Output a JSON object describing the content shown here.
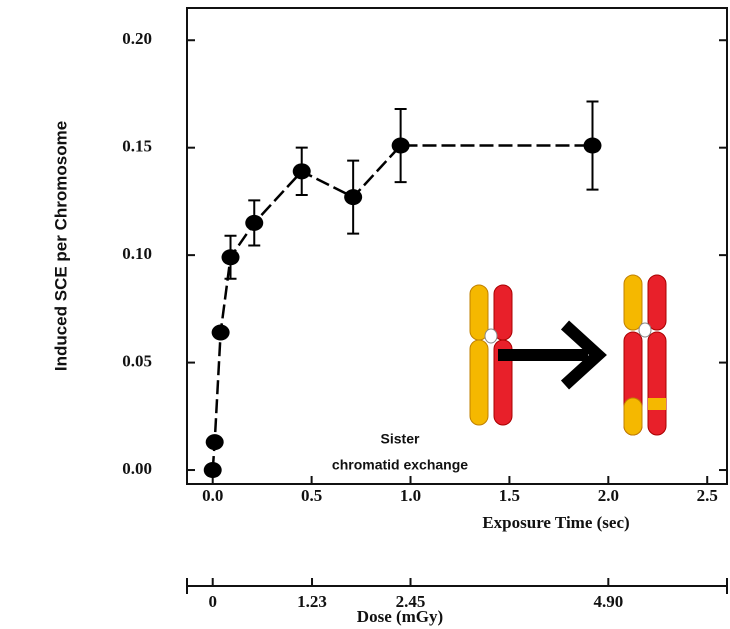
{
  "chart_data": {
    "type": "line",
    "ylabel": "Induced SCE per Chromosome",
    "xlabel": "Exposure Time (sec)",
    "x2label": "Dose (mGy)",
    "annotation": [
      "Sister",
      "chromatid exchange"
    ],
    "x": [
      0,
      0.01,
      0.04,
      0.09,
      0.21,
      0.45,
      0.71,
      0.95,
      1.92
    ],
    "series": [
      {
        "color": "#000000",
        "values": [
          0.0,
          0.013,
          0.064,
          0.099,
          0.115,
          0.139,
          0.127,
          0.151,
          0.151
        ],
        "errors": [
          null,
          null,
          null,
          0.01,
          0.0105,
          0.011,
          0.017,
          0.017,
          0.0205
        ]
      }
    ],
    "xlim": [
      -0.13,
      2.6
    ],
    "ylim": [
      -0.0065,
      0.215
    ],
    "xticks": [
      {
        "value": 0,
        "label": "0.0"
      },
      0.5,
      {
        "value": 1,
        "label": "1.0"
      },
      1.5,
      {
        "value": 2,
        "label": "2.0"
      },
      2.5
    ],
    "yticks": [
      {
        "value": 0,
        "label": "0.00"
      },
      0.05,
      {
        "value": 0.1,
        "label": "0.10"
      },
      0.15,
      {
        "value": 0.2,
        "label": "0.20"
      }
    ],
    "x2lim": [
      -0.3185,
      6.37
    ],
    "x2ticks": [
      0,
      1.23,
      2.45,
      {
        "value": 4.9,
        "label": "4.90"
      }
    ]
  }
}
